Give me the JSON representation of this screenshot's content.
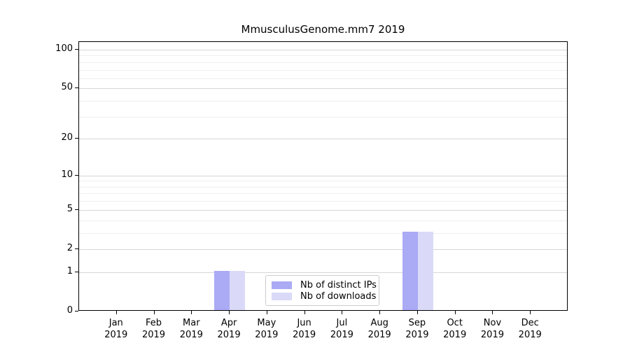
{
  "chart_data": {
    "type": "bar",
    "title": "MmusculusGenome.mm7 2019",
    "categories": [
      "Jan",
      "Feb",
      "Mar",
      "Apr",
      "May",
      "Jun",
      "Jul",
      "Aug",
      "Sep",
      "Oct",
      "Nov",
      "Dec"
    ],
    "category_year": "2019",
    "series": [
      {
        "name": "Nb of distinct IPs",
        "color": "#aaaaf5",
        "values": [
          0,
          0,
          0,
          1,
          0,
          0,
          0,
          0,
          3,
          0,
          0,
          0
        ]
      },
      {
        "name": "Nb of downloads",
        "color": "#dadaf8",
        "values": [
          0,
          0,
          0,
          1,
          0,
          0,
          0,
          0,
          3,
          0,
          0,
          0
        ]
      }
    ],
    "xlabel": "",
    "ylabel": "",
    "yscale": "log1p",
    "ylim": [
      0,
      114
    ],
    "ytick_labels": [
      "100",
      "50",
      "20",
      "10",
      "5",
      "2",
      "1",
      "0"
    ],
    "ytick_values": [
      100,
      50,
      20,
      10,
      5,
      2,
      1,
      0
    ],
    "grid": true,
    "grid_values_minor": [
      3,
      4,
      6,
      7,
      8,
      9,
      30,
      40,
      60,
      70,
      80,
      90
    ],
    "grid_values_major": [
      1,
      2,
      5,
      10,
      20,
      50,
      100
    ],
    "legend_position": "lower center",
    "legend_entries": [
      "Nb of distinct IPs",
      "Nb of downloads"
    ],
    "colors": {
      "background": "#ffffff",
      "axis": "#000000",
      "grid_major": "#d6d6d6",
      "grid_minor": "#efefef",
      "legend_border": "#cccccc",
      "bar_distinct_ips": "#aaaaf5",
      "bar_downloads": "#dadaf8"
    }
  }
}
